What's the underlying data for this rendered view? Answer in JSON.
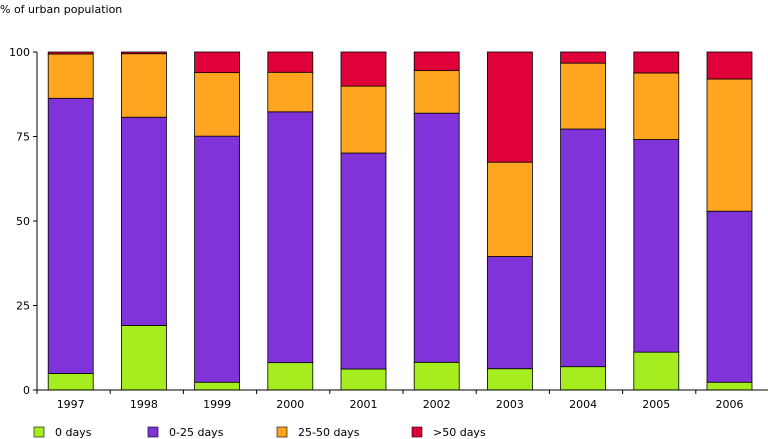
{
  "chart_data": {
    "type": "bar",
    "stacked": true,
    "ylabel": "% of urban population",
    "ylim": [
      0,
      100
    ],
    "yticks": [
      0,
      25,
      50,
      75,
      100
    ],
    "categories": [
      "1997",
      "1998",
      "1999",
      "2000",
      "2001",
      "2002",
      "2003",
      "2004",
      "2005",
      "2006"
    ],
    "legend_position": "bottom",
    "series": [
      {
        "name": "0 days",
        "color": "#a6ed1f",
        "values": [
          4.9,
          19.1,
          2.3,
          8.1,
          6.2,
          8.2,
          6.3,
          6.9,
          11.2,
          2.3
        ]
      },
      {
        "name": "0-25 days",
        "color": "#8033d9",
        "values": [
          81.4,
          61.6,
          72.8,
          74.2,
          63.9,
          73.7,
          33.2,
          70.3,
          62.9,
          50.6
        ]
      },
      {
        "name": "25-50 days",
        "color": "#ffa51f",
        "values": [
          13.1,
          18.8,
          18.8,
          11.7,
          19.8,
          12.6,
          27.9,
          19.5,
          19.7,
          39.1
        ]
      },
      {
        "name": ">50 days",
        "color": "#e0003a",
        "values": [
          0.6,
          0.5,
          6.1,
          6.0,
          10.1,
          5.5,
          32.6,
          3.3,
          6.2,
          8.0
        ]
      }
    ]
  }
}
